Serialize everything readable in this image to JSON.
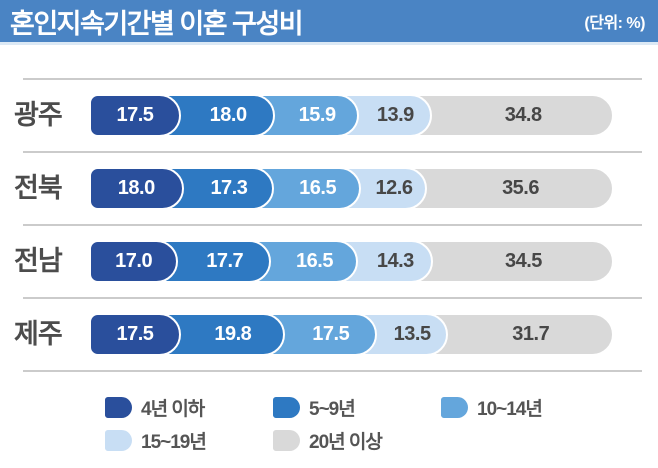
{
  "header": {
    "title": "혼인지속기간별 이혼 구성비",
    "unit_label": "(단위: %)"
  },
  "colors": {
    "header_bg": "#4a84c4",
    "header_underline": "#dce9f5",
    "segment_colors": [
      "#2a4f9c",
      "#2e79c2",
      "#64a6dc",
      "#c8def4",
      "#d9d9d9"
    ],
    "value_text_light": "#ffffff",
    "value_text_dark": "#474747",
    "row_label_text": "#4c4c4c",
    "separator": "#cbcbcb",
    "legend_text": "#555555"
  },
  "chart_data": {
    "type": "bar",
    "stacked": true,
    "orientation": "horizontal",
    "title": "혼인지속기간별 이혼 구성비",
    "unit": "%",
    "xlim": [
      0,
      100
    ],
    "grid": false,
    "legend_position": "bottom",
    "categories": [
      "광주",
      "전북",
      "전남",
      "제주"
    ],
    "series": [
      {
        "name": "4년 이하",
        "values": [
          17.5,
          18.0,
          17.0,
          17.5
        ]
      },
      {
        "name": "5~9년",
        "values": [
          18.0,
          17.3,
          17.7,
          19.8
        ]
      },
      {
        "name": "10~14년",
        "values": [
          15.9,
          16.5,
          16.5,
          17.5
        ]
      },
      {
        "name": "15~19년",
        "values": [
          13.9,
          12.6,
          14.3,
          13.5
        ]
      },
      {
        "name": "20년 이상",
        "values": [
          34.8,
          35.6,
          34.5,
          31.7
        ]
      }
    ]
  }
}
